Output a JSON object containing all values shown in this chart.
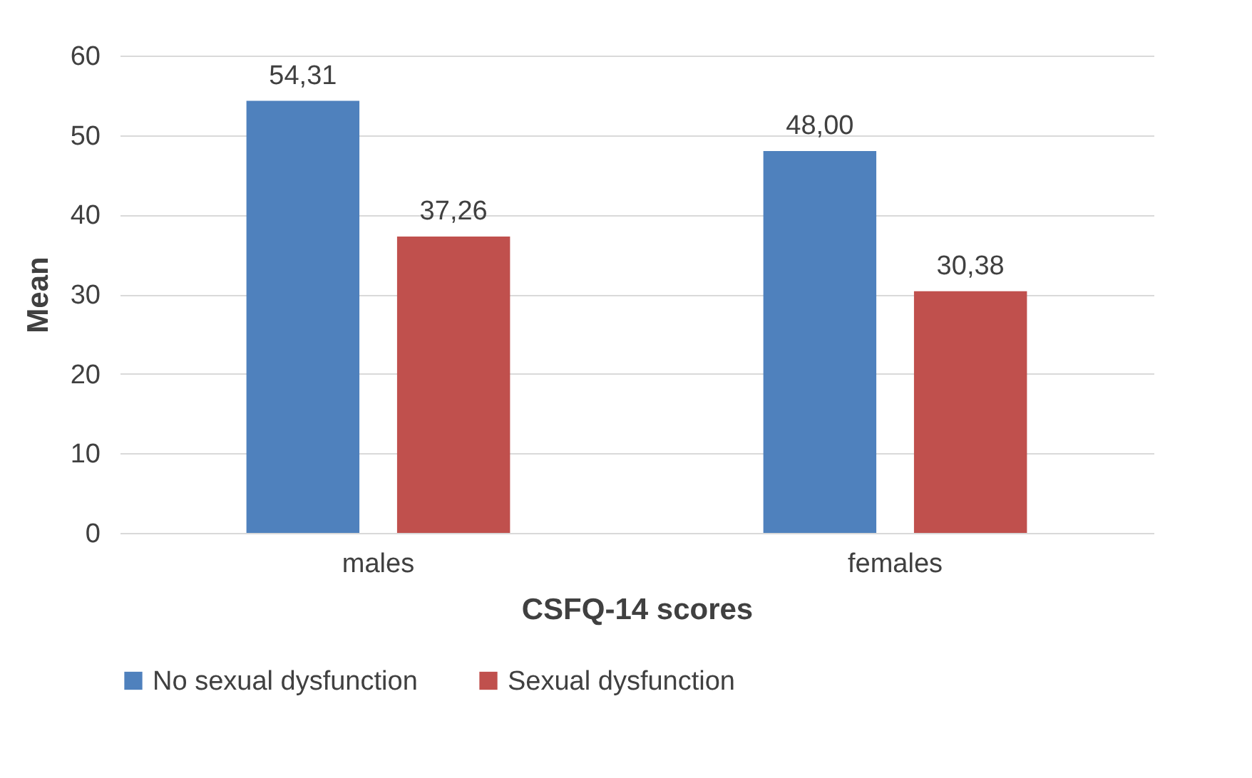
{
  "chart_data": {
    "type": "bar",
    "xlabel": "CSFQ-14 scores",
    "ylabel": "Mean",
    "categories": [
      "males",
      "females"
    ],
    "series": [
      {
        "name": "No sexual dysfunction",
        "color": "#4f81bd",
        "values": [
          54.31,
          48.0
        ],
        "value_labels": [
          "54,31",
          "48,00"
        ]
      },
      {
        "name": "Sexual dysfunction",
        "color": "#c0504d",
        "values": [
          37.26,
          30.38
        ],
        "value_labels": [
          "37,26",
          "30,38"
        ]
      }
    ],
    "ylim": [
      0,
      60
    ],
    "yticks": [
      0,
      10,
      20,
      30,
      40,
      50,
      60
    ],
    "grid": "y",
    "legend": "bottom"
  }
}
